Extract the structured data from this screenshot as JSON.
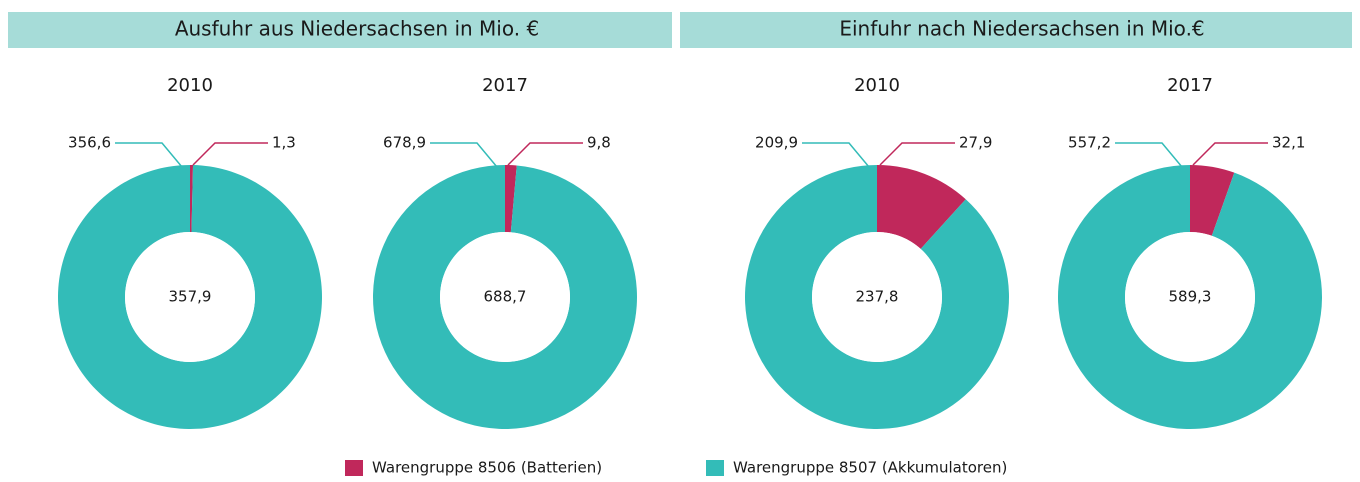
{
  "groups": [
    {
      "title": "Ausfuhr aus Niedersachsen in Mio. €"
    },
    {
      "title": "Einfuhr nach Niedersachsen in Mio.€"
    }
  ],
  "legend": [
    {
      "name": "Warengruppe 8506 (Batterien)",
      "color": "#c0285b"
    },
    {
      "name": "Warengruppe 8507 (Akkumulatoren)",
      "color": "#33bcb8"
    }
  ],
  "chart_data": [
    {
      "type": "donut",
      "title": "2010",
      "values": [
        1.3,
        356.6
      ],
      "value_labels": [
        "1,3",
        "356,6"
      ],
      "total": {
        "value": 357.9,
        "label": "357,9"
      }
    },
    {
      "type": "donut",
      "title": "2017",
      "values": [
        9.8,
        678.9
      ],
      "value_labels": [
        "9,8",
        "678,9"
      ],
      "total": {
        "value": 688.7,
        "label": "688,7"
      }
    },
    {
      "type": "donut",
      "title": "2010",
      "values": [
        27.9,
        209.9
      ],
      "value_labels": [
        "27,9",
        "209,9"
      ],
      "total": {
        "value": 237.8,
        "label": "237,8"
      }
    },
    {
      "type": "donut",
      "title": "2017",
      "values": [
        32.1,
        557.2
      ],
      "value_labels": [
        "32,1",
        "557,2"
      ],
      "total": {
        "value": 589.3,
        "label": "589,3"
      }
    }
  ]
}
